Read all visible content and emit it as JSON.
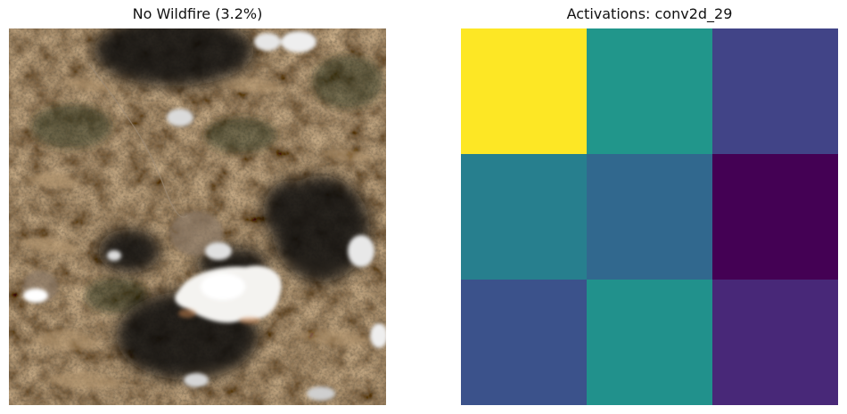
{
  "panels": {
    "left": {
      "title": "No Wildfire (3.2%)"
    },
    "right": {
      "title": "Activations: conv2d_29"
    }
  },
  "activation_grid": {
    "rows": 3,
    "cols": 3,
    "colors": [
      [
        "#fde725",
        "#21968b",
        "#414487"
      ],
      [
        "#277f8e",
        "#31688e",
        "#440154"
      ],
      [
        "#3b528b",
        "#21918c",
        "#482878"
      ]
    ]
  }
}
